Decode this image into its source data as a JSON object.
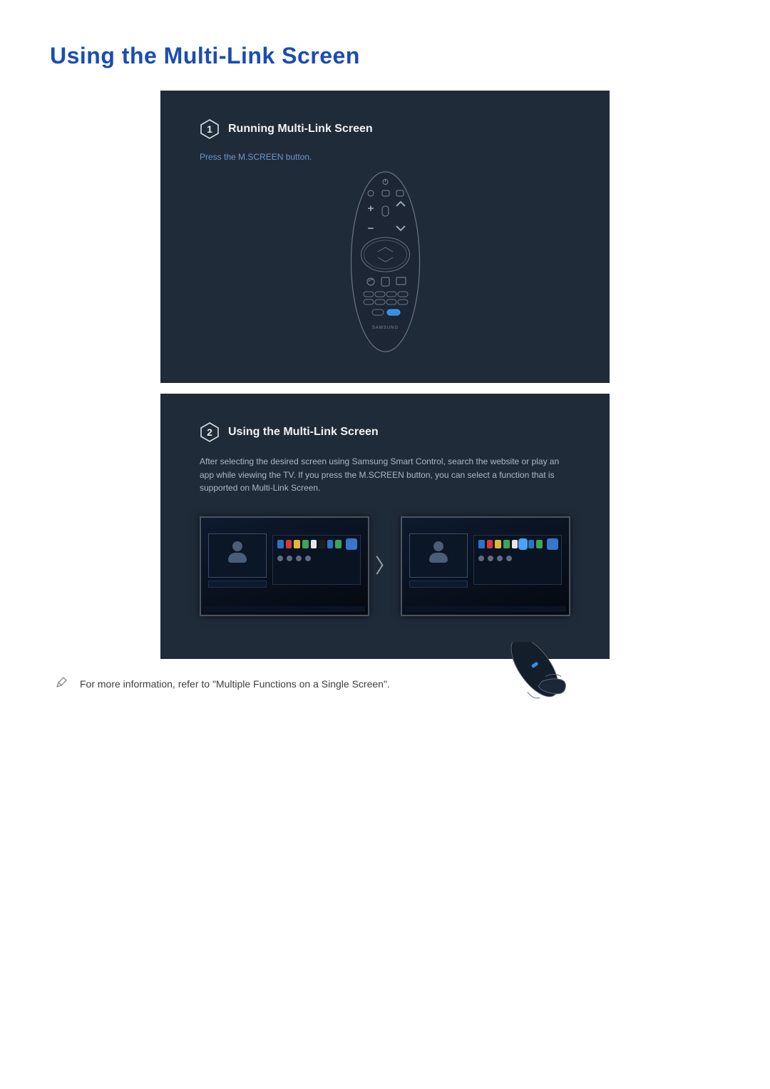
{
  "page": {
    "title": "Using the Multi-Link Screen",
    "title_color": "#1a4db3"
  },
  "panel_bg": "#202b3a",
  "step1": {
    "number": "1",
    "title": "Running Multi-Link Screen",
    "instruction": "Press the M.SCREEN button.",
    "instruction_color": "#6b97c9",
    "remote_brand": "SAMSUNG",
    "mscreen_button_color": "#2f8fe5"
  },
  "step2": {
    "number": "2",
    "title": "Using the Multi-Link Screen",
    "description": "After selecting the desired screen using Samsung Smart Control, search the website or play an app while viewing the TV. If you press the M.SCREEN button, you can select a function that is supported on Multi-Link Screen.",
    "arrow_glyph": "〉",
    "left_screen": {
      "selected": false,
      "icon_colors": [
        "#2d74c4",
        "#d23b3b",
        "#e0b83a",
        "#3fa35a",
        "#e6e6e6",
        "#1d1d1d",
        "#2d74c4",
        "#3fa35a"
      ],
      "corner_icon_color": "#3776c8"
    },
    "right_screen": {
      "selected": true,
      "icon_colors": [
        "#2d74c4",
        "#d23b3b",
        "#e0b83a",
        "#3fa35a",
        "#e6e6e6",
        "#4aa3ff",
        "#2d74c4",
        "#3fa35a"
      ],
      "corner_icon_color": "#3776c8"
    }
  },
  "footnote": {
    "text": "For more information, refer to \"Multiple Functions on a Single Screen\"."
  }
}
